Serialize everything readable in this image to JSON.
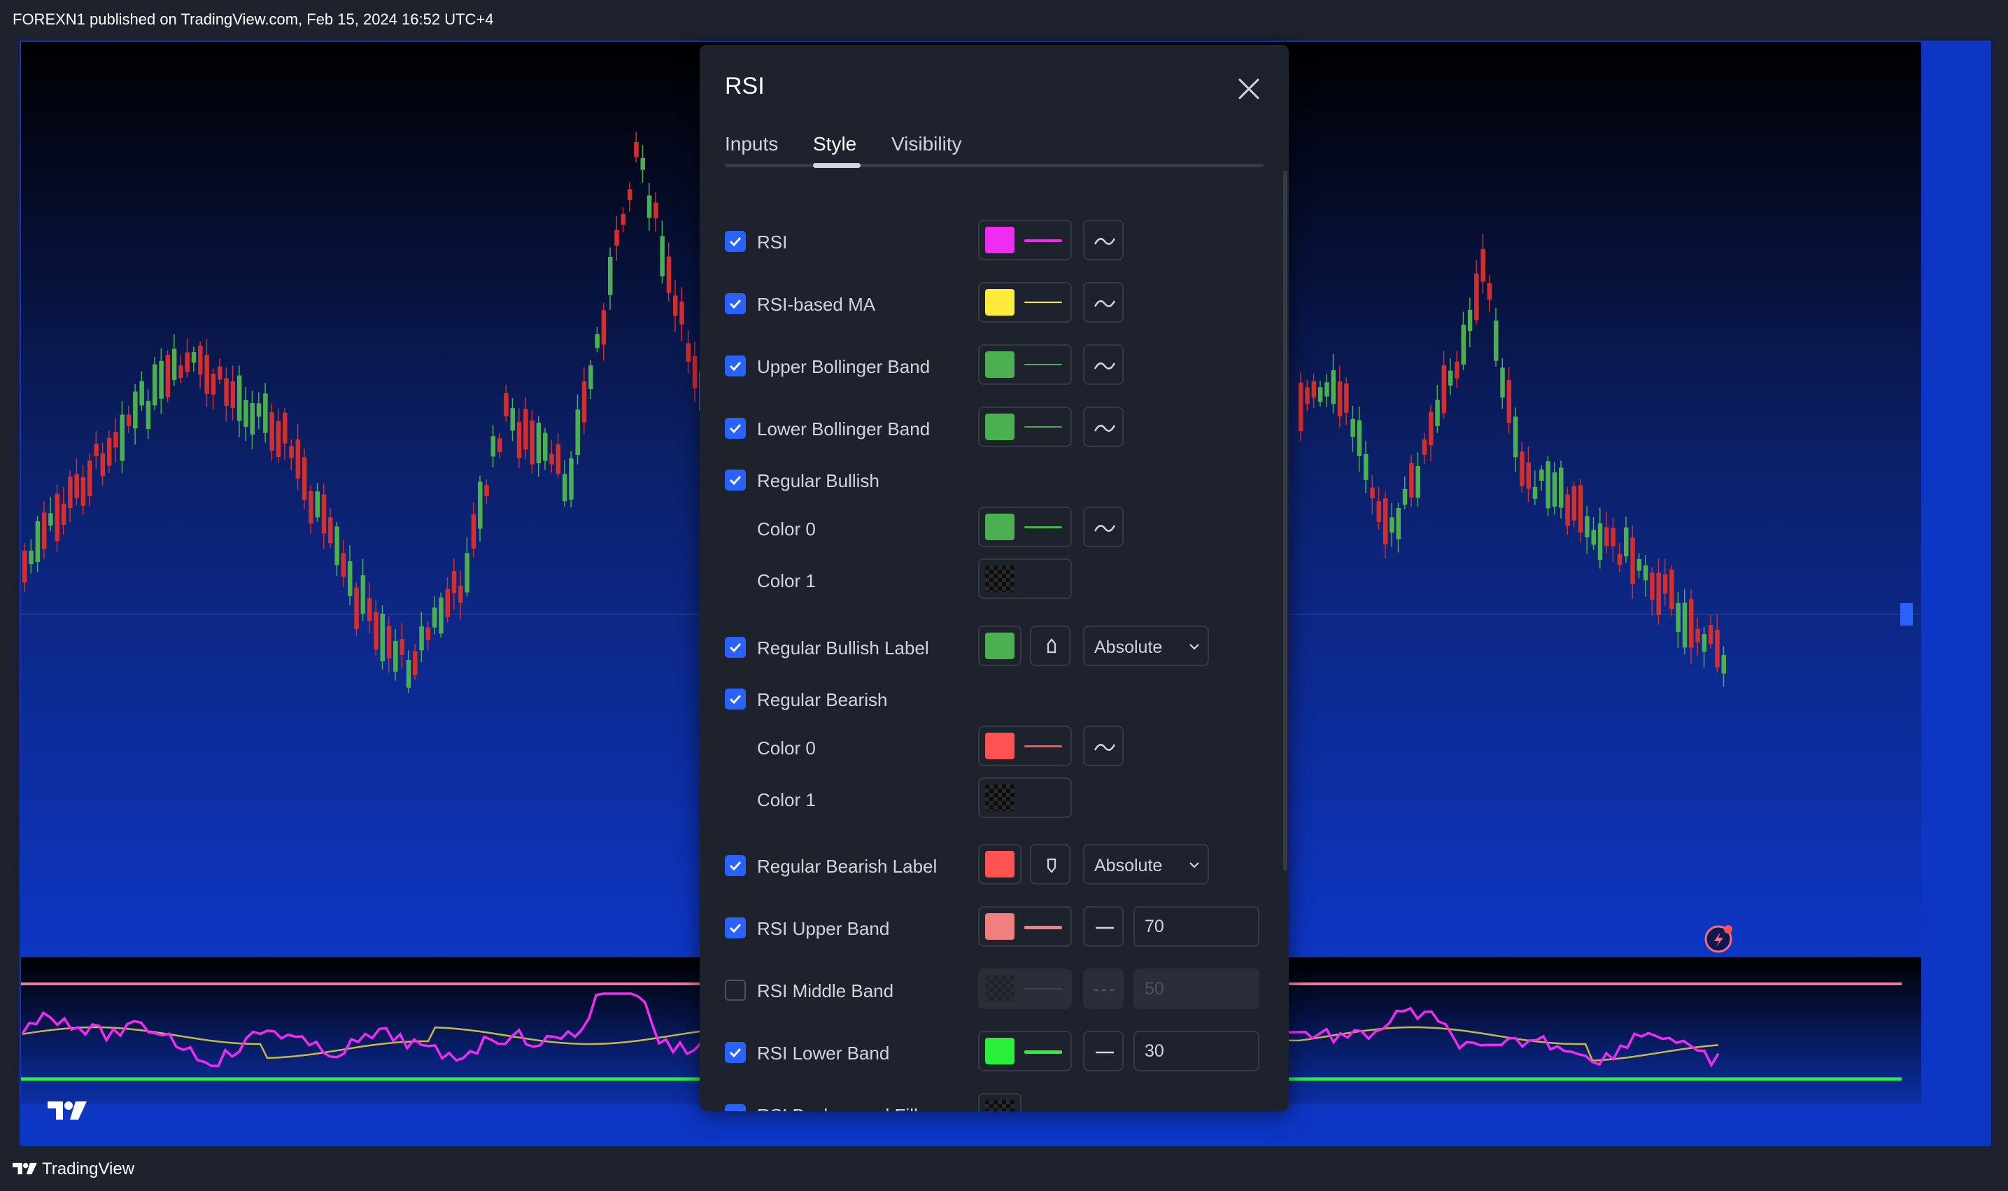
{
  "header": {
    "text": "FOREXN1 published on TradingView.com, Feb 15, 2024 16:52 UTC+4"
  },
  "footer": {
    "brand": "TradingView"
  },
  "dialog": {
    "title": "RSI",
    "tabs": [
      {
        "label": "Inputs",
        "active": false
      },
      {
        "label": "Style",
        "active": true
      },
      {
        "label": "Visibility",
        "active": false
      }
    ],
    "rows": [
      {
        "label": "RSI",
        "checked": true,
        "color": "#f02cf2",
        "line": "solid"
      },
      {
        "label": "RSI-based MA",
        "checked": true,
        "color": "#ffeb3b",
        "line": "thin"
      },
      {
        "label": "Upper Bollinger Band",
        "checked": true,
        "color": "#4caf50",
        "line": "thin"
      },
      {
        "label": "Lower Bollinger Band",
        "checked": true,
        "color": "#4caf50",
        "line": "thin"
      },
      {
        "label": "Regular Bullish",
        "checked": true
      },
      {
        "label": "Color 0",
        "color": "#4caf50",
        "line": "solid"
      },
      {
        "label": "Color 1",
        "color": "transparent"
      },
      {
        "label": "Regular Bullish Label",
        "checked": true,
        "color": "#4caf50",
        "label_style": "Absolute"
      },
      {
        "label": "Regular Bearish",
        "checked": true
      },
      {
        "label": "Color 0",
        "color": "#ff5252",
        "line": "solid"
      },
      {
        "label": "Color 1",
        "color": "transparent"
      },
      {
        "label": "Regular Bearish Label",
        "checked": true,
        "color": "#ff5252",
        "label_style": "Absolute"
      },
      {
        "label": "RSI Upper Band",
        "checked": true,
        "color": "#f08080",
        "line": "thick",
        "value": "70"
      },
      {
        "label": "RSI Middle Band",
        "checked": false,
        "color": "transparent",
        "line": "dashed",
        "value": "50"
      },
      {
        "label": "RSI Lower Band",
        "checked": true,
        "color": "#2bf03b",
        "line": "thick",
        "value": "30"
      },
      {
        "label": "RSI Background Fill",
        "checked": true,
        "color": "transparent"
      }
    ]
  },
  "colors": {
    "bull": "#4caf50",
    "bear": "#d32f2f",
    "rsi_line": "#f02cf2",
    "rsi_ma": "#c8b84a",
    "upper_band": "#f08090",
    "lower_band": "#2bf03b",
    "accent": "#2962ff"
  }
}
